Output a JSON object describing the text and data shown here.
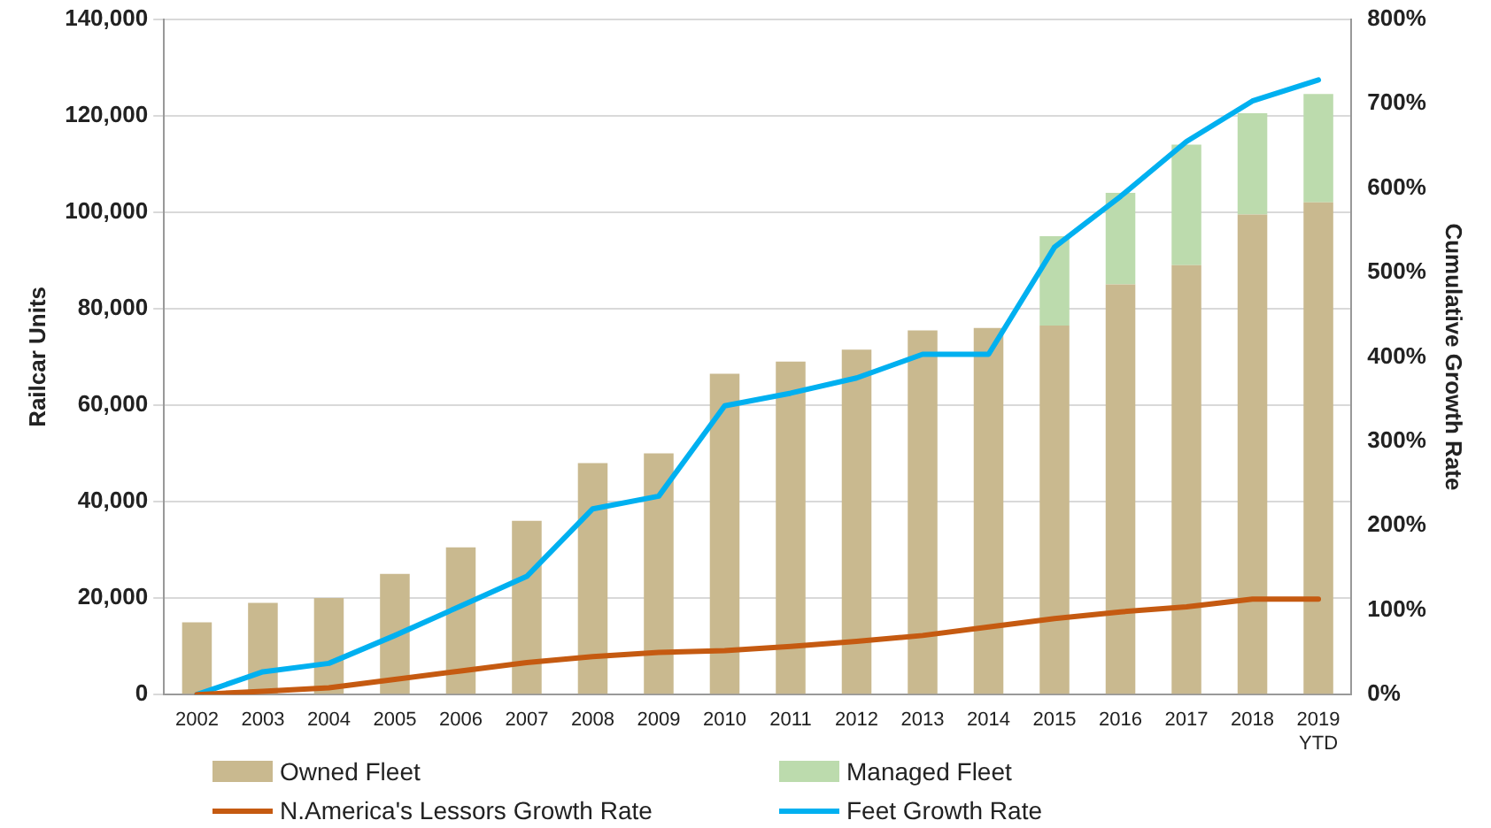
{
  "chart_data": {
    "type": "bar",
    "stacked": true,
    "categories": [
      "2002",
      "2003",
      "2004",
      "2005",
      "2006",
      "2007",
      "2008",
      "2009",
      "2010",
      "2011",
      "2012",
      "2013",
      "2014",
      "2015",
      "2016",
      "2017",
      "2018",
      "2019\nYTD"
    ],
    "ylabel": "Railcar Units",
    "y2label": "Cumulative Growth Rate",
    "ylim": [
      0,
      140000
    ],
    "yticks": [
      {
        "value": 0,
        "label": "0"
      },
      {
        "value": 20000,
        "label": "20,000"
      },
      {
        "value": 40000,
        "label": "40,000"
      },
      {
        "value": 60000,
        "label": "60,000"
      },
      {
        "value": 80000,
        "label": "80,000"
      },
      {
        "value": 100000,
        "label": "100,000"
      },
      {
        "value": 120000,
        "label": "120,000"
      },
      {
        "value": 140000,
        "label": "140,000"
      }
    ],
    "y2lim": [
      0,
      800
    ],
    "y2ticks": [
      {
        "value": 0,
        "label": "0%"
      },
      {
        "value": 100,
        "label": "100%"
      },
      {
        "value": 200,
        "label": "200%"
      },
      {
        "value": 300,
        "label": "300%"
      },
      {
        "value": 400,
        "label": "400%"
      },
      {
        "value": 500,
        "label": "500%"
      },
      {
        "value": 600,
        "label": "600%"
      },
      {
        "value": 700,
        "label": "700%"
      },
      {
        "value": 800,
        "label": "800%"
      }
    ],
    "grid": "y",
    "legend": "bottom",
    "series": [
      {
        "name": "Owned Fleet",
        "color": "#c9b98f",
        "values": [
          15000,
          19000,
          20000,
          25000,
          30500,
          36000,
          48000,
          50000,
          66500,
          69000,
          71500,
          75500,
          76000,
          76500,
          85000,
          89000,
          99500,
          102000
        ]
      },
      {
        "name": "Managed Fleet",
        "color": "#bcdbad",
        "values": [
          null,
          null,
          null,
          null,
          null,
          null,
          null,
          null,
          null,
          null,
          null,
          null,
          null,
          18500,
          19000,
          25000,
          21000,
          22500
        ]
      },
      {
        "name": "N.America's Lessors Growth Rate",
        "type": "line",
        "axis": "y2",
        "color": "#c55a11",
        "values": [
          0,
          4,
          8,
          18,
          28,
          38,
          45,
          50,
          52,
          57,
          63,
          70,
          80,
          90,
          98,
          104,
          113,
          113
        ]
      },
      {
        "name": "Feet Growth Rate",
        "type": "line",
        "axis": "y2",
        "color": "#00b0f0",
        "values": [
          0,
          27,
          37,
          70,
          105,
          140,
          220,
          235,
          342,
          357,
          375,
          403,
          403,
          530,
          590,
          655,
          703,
          728
        ]
      }
    ]
  }
}
